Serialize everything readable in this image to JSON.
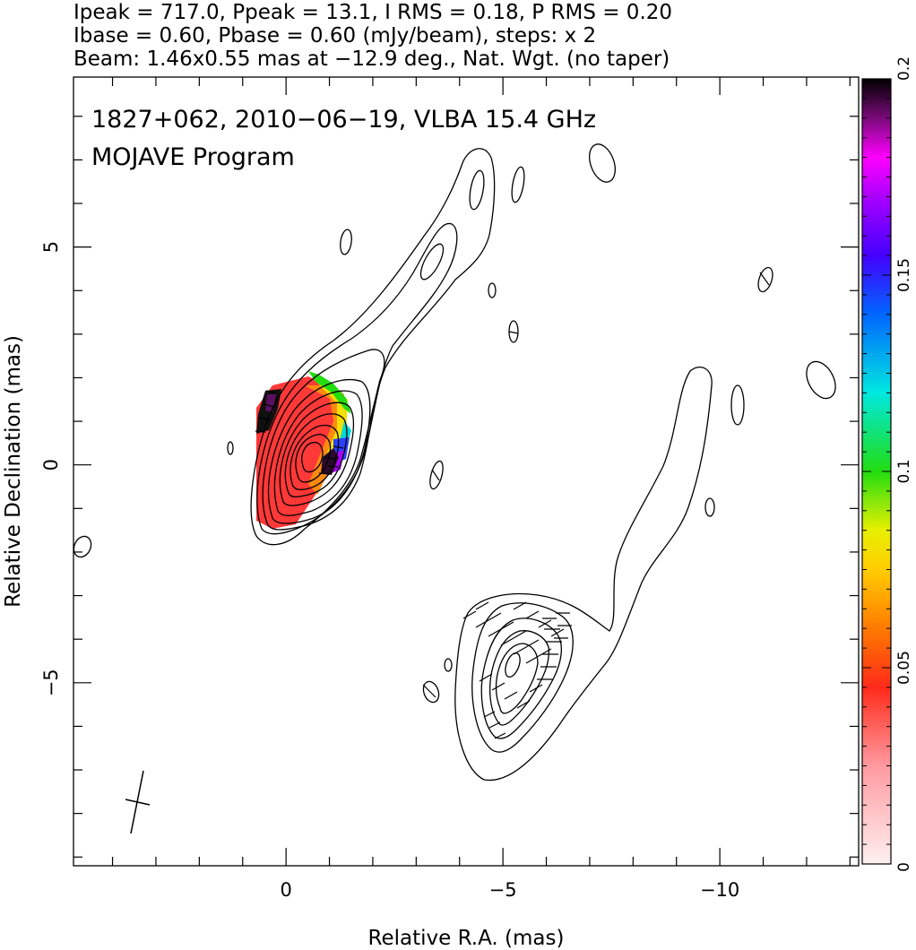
{
  "header": {
    "line1": "Ipeak = 717.0, Ppeak = 13.1, I RMS = 0.18, P RMS = 0.20",
    "line2": "Ibase = 0.60, Pbase = 0.60 (mJy/beam), steps: x 2",
    "line3": "Beam: 1.46x0.55 mas at −12.9 deg., Nat. Wgt. (no taper)"
  },
  "chart_data": {
    "type": "contour",
    "annotation_line1": "1827+062, 2010−06−19, VLBA 15.4 GHz",
    "annotation_line2": "MOJAVE Program",
    "xlabel": "Relative R.A. (mas)",
    "ylabel": "Relative Declination (mas)",
    "xlim": [
      4.9,
      -13.2
    ],
    "ylim": [
      -9.2,
      8.9
    ],
    "x_ticks": [
      {
        "value": 0,
        "label": "0"
      },
      {
        "value": -5,
        "label": "−5"
      },
      {
        "value": -10,
        "label": "−10"
      }
    ],
    "y_ticks": [
      {
        "value": 5,
        "label": "5"
      },
      {
        "value": 0,
        "label": "0"
      },
      {
        "value": -5,
        "label": "−5"
      }
    ],
    "colorbar": {
      "min": 0,
      "max": 0.2,
      "ticks": [
        {
          "value": 0,
          "label": "0"
        },
        {
          "value": 0.05,
          "label": "0.05"
        },
        {
          "value": 0.1,
          "label": "0.1"
        },
        {
          "value": 0.15,
          "label": "0.15"
        },
        {
          "value": 0.2,
          "label": "0.2"
        }
      ],
      "color_stops": [
        {
          "v": 0.0,
          "color": "#fff0f0"
        },
        {
          "v": 0.025,
          "color": "#ff9aa0"
        },
        {
          "v": 0.045,
          "color": "#ff2a1a"
        },
        {
          "v": 0.06,
          "color": "#ff7a00"
        },
        {
          "v": 0.075,
          "color": "#ffcc00"
        },
        {
          "v": 0.085,
          "color": "#e8f000"
        },
        {
          "v": 0.1,
          "color": "#22dd11"
        },
        {
          "v": 0.12,
          "color": "#00e8e0"
        },
        {
          "v": 0.14,
          "color": "#0066ff"
        },
        {
          "v": 0.155,
          "color": "#4400ff"
        },
        {
          "v": 0.17,
          "color": "#aa00ff"
        },
        {
          "v": 0.18,
          "color": "#ff00ff"
        },
        {
          "v": 0.19,
          "color": "#7a0a7a"
        },
        {
          "v": 0.2,
          "color": "#000000"
        }
      ]
    },
    "core": {
      "x": 0,
      "y": 0
    },
    "feature_component": {
      "x": -5.0,
      "y": -4.8
    }
  }
}
